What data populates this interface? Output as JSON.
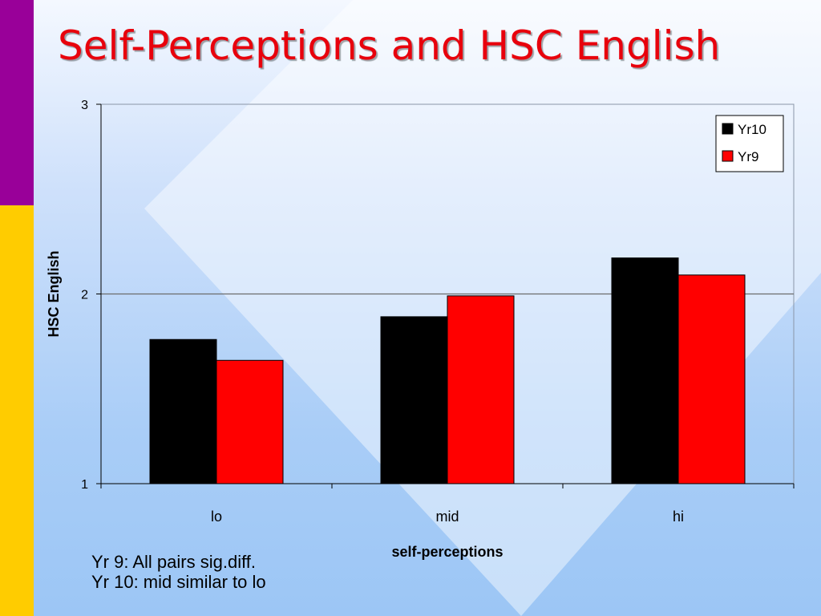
{
  "slide": {
    "title": "Self-Perceptions and HSC English",
    "notes": [
      "Yr 9: All pairs sig.diff.",
      "Yr 10: mid similar to lo"
    ]
  },
  "colors": {
    "title": "#e8000c",
    "purple_bar": "#990099",
    "yellow_bar": "#ffcc00"
  },
  "chart_data": {
    "type": "bar",
    "categories": [
      "lo",
      "mid",
      "hi"
    ],
    "series": [
      {
        "name": "Yr10",
        "color": "#000000",
        "values": [
          1.76,
          1.88,
          2.19
        ]
      },
      {
        "name": "Yr9",
        "color": "#ff0000",
        "values": [
          1.65,
          1.99,
          2.1
        ]
      }
    ],
    "xlabel": "self-perceptions",
    "ylabel": "HSC English",
    "ylim": [
      1,
      3
    ],
    "yticks": [
      1,
      2,
      3
    ],
    "grid": true,
    "legend": "top-right"
  }
}
